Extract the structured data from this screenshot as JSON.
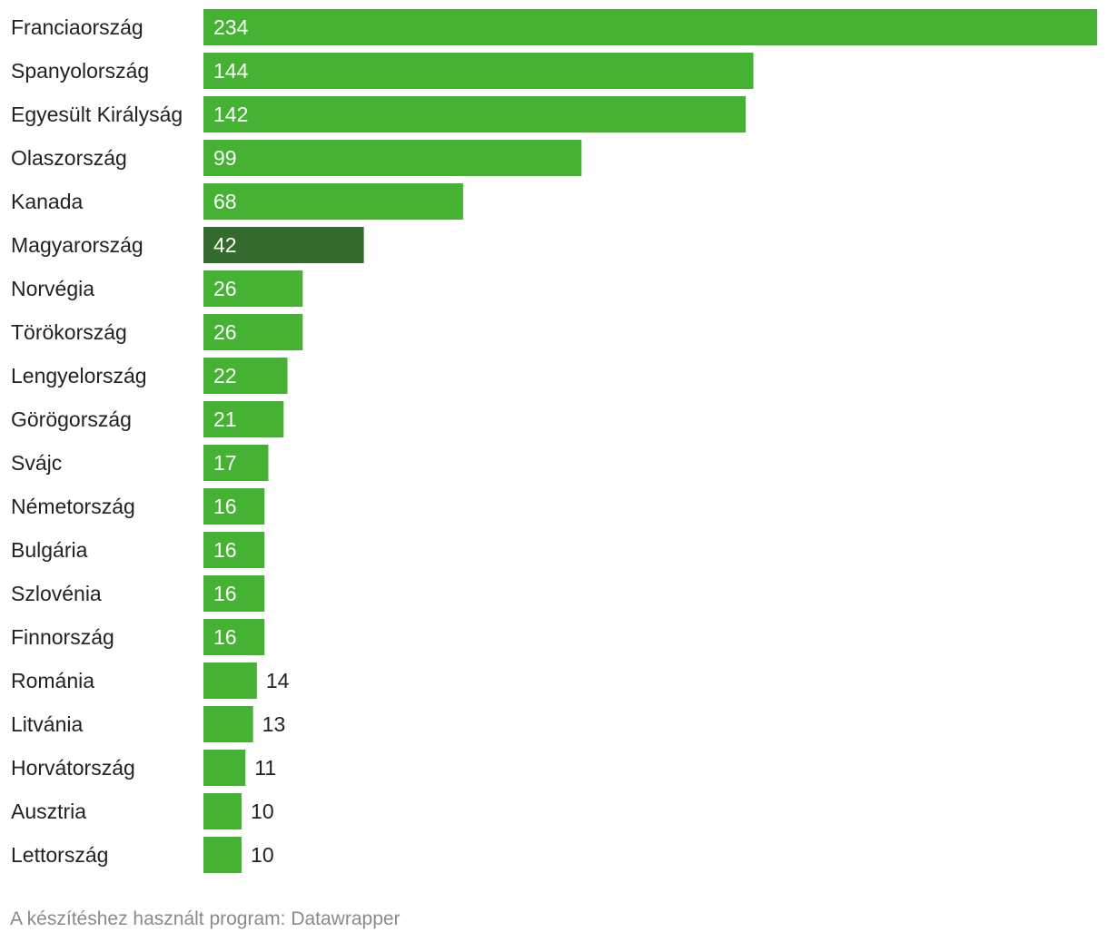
{
  "chart_data": {
    "type": "bar",
    "orientation": "horizontal",
    "categories": [
      "Franciaország",
      "Spanyolország",
      "Egyesült Királyság",
      "Olaszország",
      "Kanada",
      "Magyarország",
      "Norvégia",
      "Törökország",
      "Lengyelország",
      "Görögország",
      "Svájc",
      "Németország",
      "Bulgária",
      "Szlovénia",
      "Finnország",
      "Románia",
      "Litvánia",
      "Horvátország",
      "Ausztria",
      "Lettország"
    ],
    "values": [
      234,
      144,
      142,
      99,
      68,
      42,
      26,
      26,
      22,
      21,
      17,
      16,
      16,
      16,
      16,
      14,
      13,
      11,
      10,
      10
    ],
    "highlight": "Magyarország",
    "xlim": [
      0,
      234
    ],
    "grid": false,
    "colors": {
      "bar": "#46b233",
      "highlight": "#356a2e",
      "label_inside": "#ffffff",
      "label_outside": "#222222",
      "category_text": "#222222"
    }
  },
  "footer": {
    "credit": "A készítéshez használt program: Datawrapper"
  }
}
